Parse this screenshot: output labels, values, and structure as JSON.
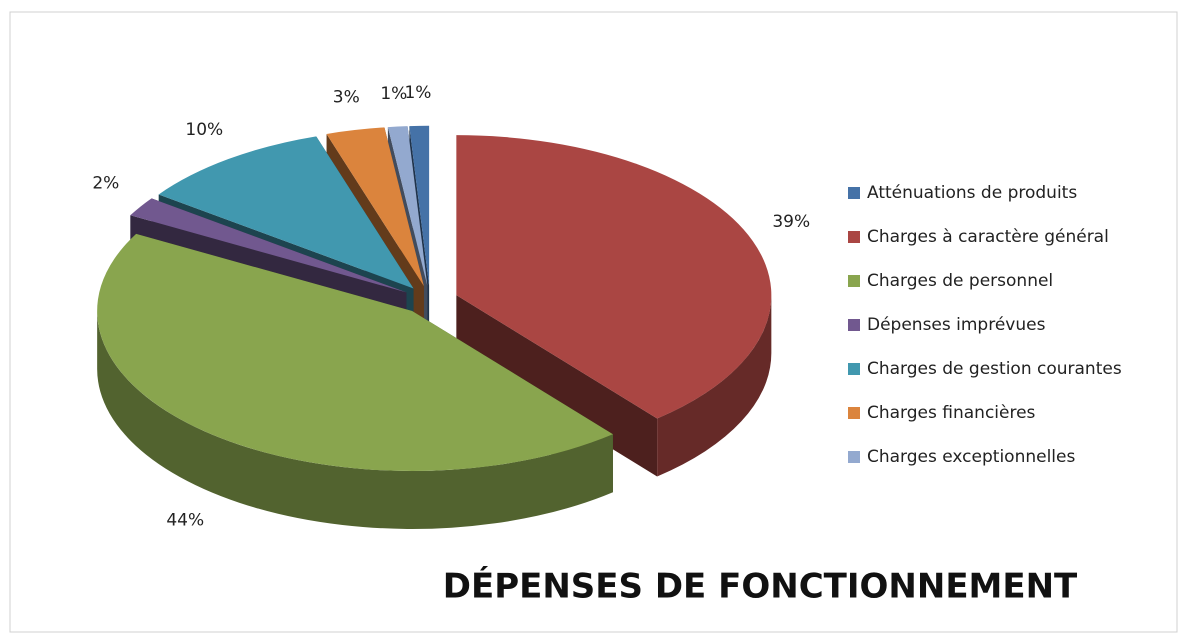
{
  "chart_data": {
    "type": "pie3d",
    "title": "DÉPENSES DE FONCTIONNEMENT",
    "categories": [
      "Atténuations de produits",
      "Charges à caractère général",
      "Charges de personnel",
      "Dépenses imprévues",
      "Charges de gestion courantes",
      "Charges financières",
      "Charges exceptionnelles"
    ],
    "values": [
      1,
      39,
      44,
      2,
      10,
      3,
      1
    ],
    "value_labels": [
      "1%",
      "39%",
      "44%",
      "2%",
      "10%",
      "3%",
      "1%"
    ],
    "colors": [
      "#4572a7",
      "#aa4643",
      "#89a54e",
      "#71588f",
      "#4198af",
      "#db843d",
      "#93a9cf"
    ],
    "legend": "right"
  }
}
